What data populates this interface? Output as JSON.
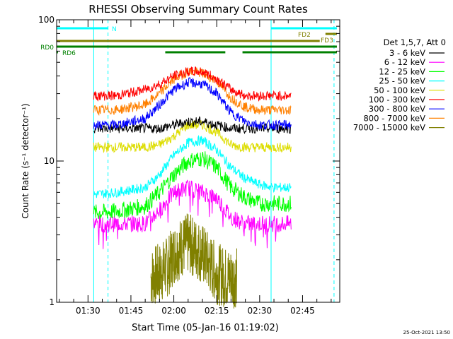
{
  "chart_data": {
    "type": "line",
    "title": "RHESSI Observing Summary Count Rates",
    "xlabel": "Start Time (05-Jan-16 01:19:02)",
    "ylabel": "Count Rate (s⁻¹ detector⁻¹)",
    "y_scale": "log",
    "ylim": [
      1,
      100
    ],
    "xlim": [
      "01:19:02",
      "02:58:00"
    ],
    "x_ticks": [
      "01:30",
      "01:45",
      "02:00",
      "02:15",
      "02:30",
      "02:45"
    ],
    "y_ticks": [
      "1",
      "10",
      "100"
    ],
    "legend_title": "Det 1,5,7, Att 0",
    "legend_position": "right",
    "data_gaps": [
      [
        "01:19:02",
        "01:32:00"
      ],
      [
        "02:41:00",
        "02:58:00"
      ]
    ],
    "series": [
      {
        "name": "3 - 6 keV",
        "color": "#000000",
        "x": [
          "01:32",
          "01:40",
          "01:50",
          "01:55",
          "02:00",
          "02:05",
          "02:10",
          "02:15",
          "02:20",
          "02:25",
          "02:30",
          "02:35",
          "02:41"
        ],
        "values": [
          17,
          17,
          17,
          17,
          18,
          19,
          19,
          18,
          17,
          17,
          17,
          17,
          17
        ]
      },
      {
        "name": "6 - 12 keV",
        "color": "#ff00ff",
        "x": [
          "01:32",
          "01:40",
          "01:50",
          "01:55",
          "02:00",
          "02:05",
          "02:10",
          "02:15",
          "02:20",
          "02:25",
          "02:30",
          "02:35",
          "02:41"
        ],
        "values": [
          3.6,
          3.6,
          3.6,
          4.5,
          6,
          6.5,
          6,
          5.5,
          4,
          3.6,
          3.6,
          3.6,
          3.6
        ]
      },
      {
        "name": "12 - 25 keV",
        "color": "#00ff00",
        "x": [
          "01:32",
          "01:40",
          "01:50",
          "01:55",
          "02:00",
          "02:05",
          "02:10",
          "02:15",
          "02:20",
          "02:25",
          "02:30",
          "02:35",
          "02:41"
        ],
        "values": [
          4.3,
          4.4,
          4.8,
          6,
          8,
          10,
          10.5,
          9,
          6.5,
          5.5,
          5,
          5,
          5
        ]
      },
      {
        "name": "25 - 50 keV",
        "color": "#00ffff",
        "x": [
          "01:32",
          "01:40",
          "01:50",
          "01:55",
          "02:00",
          "02:05",
          "02:10",
          "02:15",
          "02:20",
          "02:25",
          "02:30",
          "02:35",
          "02:41"
        ],
        "values": [
          5.8,
          6,
          6.5,
          8,
          11,
          13.5,
          14,
          12,
          9,
          7.5,
          6.8,
          6.5,
          6.5
        ]
      },
      {
        "name": "50 - 100 keV",
        "color": "#dddd00",
        "x": [
          "01:32",
          "01:40",
          "01:50",
          "01:55",
          "02:00",
          "02:05",
          "02:10",
          "02:15",
          "02:20",
          "02:25",
          "02:30",
          "02:35",
          "02:41"
        ],
        "values": [
          12.5,
          12.5,
          12.5,
          13,
          15,
          18,
          18,
          16,
          13,
          12.5,
          12.5,
          12.5,
          12.5
        ]
      },
      {
        "name": "100 - 300 keV",
        "color": "#ff0000",
        "x": [
          "01:32",
          "01:40",
          "01:50",
          "01:55",
          "02:00",
          "02:05",
          "02:10",
          "02:15",
          "02:20",
          "02:25",
          "02:30",
          "02:35",
          "02:41"
        ],
        "values": [
          29,
          29,
          32,
          35,
          40,
          43,
          43,
          38,
          32,
          29,
          29,
          29,
          29
        ]
      },
      {
        "name": "300 - 800 keV",
        "color": "#0000ff",
        "x": [
          "01:32",
          "01:40",
          "01:50",
          "01:55",
          "02:00",
          "02:05",
          "02:10",
          "02:15",
          "02:20",
          "02:25",
          "02:30",
          "02:35",
          "02:41"
        ],
        "values": [
          18,
          18,
          20,
          25,
          32,
          36,
          35,
          30,
          22,
          19,
          18,
          18,
          18
        ]
      },
      {
        "name": "800 - 7000 keV",
        "color": "#ff8000",
        "x": [
          "01:32",
          "01:40",
          "01:50",
          "01:55",
          "02:00",
          "02:05",
          "02:10",
          "02:15",
          "02:20",
          "02:25",
          "02:30",
          "02:35",
          "02:41"
        ],
        "values": [
          23,
          23,
          25,
          30,
          38,
          43,
          42,
          37,
          28,
          24,
          23,
          23,
          23
        ]
      },
      {
        "name": "7000 - 15000 keV",
        "color": "#808000",
        "x": [
          "01:52",
          "01:55",
          "01:58",
          "02:00",
          "02:03",
          "02:05",
          "02:08",
          "02:10",
          "02:13",
          "02:15",
          "02:18",
          "02:20",
          "02:22"
        ],
        "values": [
          1.5,
          1.6,
          1.8,
          2.2,
          2.5,
          2.6,
          2.4,
          2.2,
          1.8,
          1.6,
          1.5,
          1.5,
          1.5
        ]
      }
    ],
    "attenuator_bars": [
      {
        "label": "N",
        "color": "#00ffff",
        "segments": [
          [
            "01:19:02",
            "01:37"
          ],
          [
            "02:34",
            "02:57"
          ]
        ]
      },
      {
        "label": "FD2",
        "color": "#808000",
        "segments": [
          [
            "02:53",
            "02:57"
          ]
        ]
      },
      {
        "label": "FD3",
        "color": "#808000",
        "segments": [
          [
            "01:19:02",
            "02:51"
          ]
        ]
      },
      {
        "label": "RD0",
        "color": "#008000",
        "segments": [
          [
            "01:19:02",
            "02:57"
          ]
        ]
      },
      {
        "label": "RD6",
        "color": "#008000",
        "segments": [
          [
            "01:19:02",
            "01:19:30"
          ],
          [
            "01:57",
            "02:18"
          ],
          [
            "02:24",
            "02:49"
          ],
          [
            "02:44",
            "02:57"
          ]
        ]
      }
    ],
    "vertical_markers": [
      {
        "time": "01:32",
        "color": "#00ffff",
        "style": "solid"
      },
      {
        "time": "01:37",
        "color": "#00ffff",
        "style": "dashed"
      },
      {
        "time": "02:34",
        "color": "#00ffff",
        "style": "solid"
      },
      {
        "time": "02:56",
        "color": "#00ffff",
        "style": "dashed"
      }
    ]
  },
  "footer": {
    "timestamp": "25-Oct-2021 13:50"
  }
}
